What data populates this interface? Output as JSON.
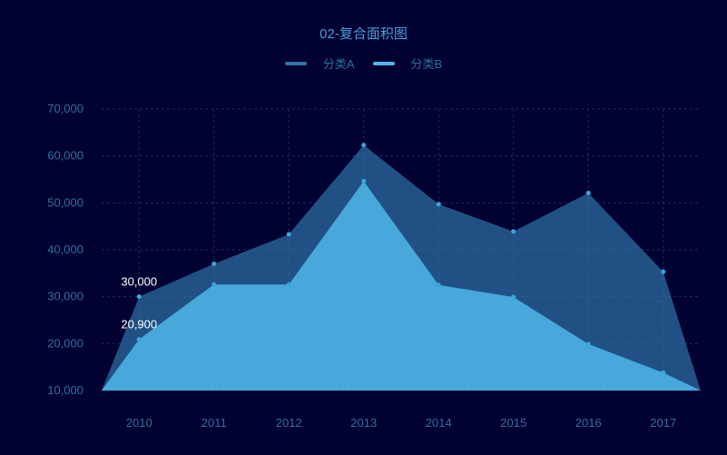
{
  "colors": {
    "background": "#010231",
    "title": "#4a9fd8",
    "axis_text": "#2e6fa0",
    "grid": "#1a2d60",
    "series_a": "#2f73a8",
    "series_b": "#4fb7ea"
  },
  "chart_data": {
    "type": "area",
    "title": "02-复合面积图",
    "x": [
      "2010",
      "2011",
      "2012",
      "2013",
      "2014",
      "2015",
      "2016",
      "2017"
    ],
    "ylim": [
      10000,
      70000
    ],
    "yticks": [
      "10,000",
      "20,000",
      "30,000",
      "40,000",
      "50,000",
      "60,000",
      "70,000"
    ],
    "ytick_values": [
      10000,
      20000,
      30000,
      40000,
      50000,
      60000,
      70000
    ],
    "grid": true,
    "legend_position": "top-center",
    "series": [
      {
        "name": "分类A",
        "values": [
          30000,
          37000,
          43300,
          62300,
          49700,
          43900,
          52100,
          35300
        ],
        "color": "#2f73a8"
      },
      {
        "name": "分类B",
        "values": [
          20900,
          32600,
          32600,
          54600,
          32500,
          29900,
          19900,
          13800
        ],
        "color": "#4fb7ea"
      }
    ],
    "annotations": [
      {
        "text": "30,000",
        "x": "2010",
        "y": 30000
      },
      {
        "text": "20,900",
        "x": "2010",
        "y": 20900
      }
    ]
  }
}
